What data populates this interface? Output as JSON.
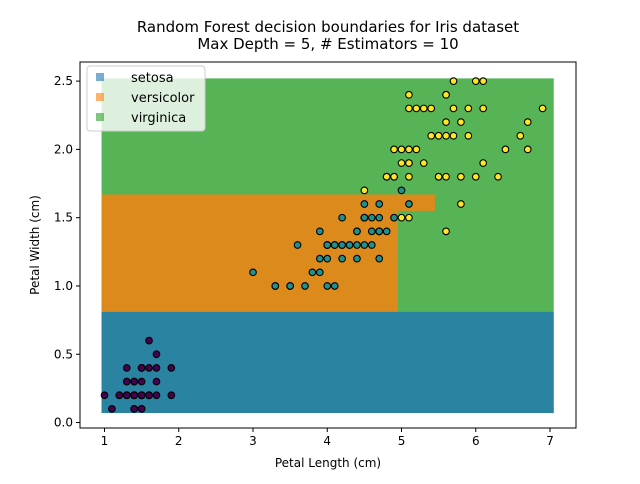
{
  "chart_data": {
    "type": "scatter",
    "title": "Random Forest decision boundaries for Iris dataset",
    "subtitle": "Max Depth = 5, # Estimators = 10",
    "xlabel": "Petal Length (cm)",
    "ylabel": "Petal Width (cm)",
    "xlim": [
      0.67,
      7.35
    ],
    "ylim": [
      -0.04,
      2.64
    ],
    "xticks": [
      1,
      2,
      3,
      4,
      5,
      6,
      7
    ],
    "xtick_labels": [
      "1",
      "2",
      "3",
      "4",
      "5",
      "6",
      "7"
    ],
    "yticks": [
      0.0,
      0.5,
      1.0,
      1.5,
      2.0,
      2.5
    ],
    "ytick_labels": [
      "0.0",
      "0.5",
      "1.0",
      "1.5",
      "2.0",
      "2.5"
    ],
    "grid": false,
    "legend_placement": "top-left",
    "legend": [
      {
        "label": "setosa",
        "color": "#1f77b4"
      },
      {
        "label": "versicolor",
        "color": "#ff7f0e"
      },
      {
        "label": "virginica",
        "color": "#2ca02c"
      }
    ],
    "regions": [
      {
        "class": "virginica",
        "color": "#2ca02c",
        "x": [
          0.96,
          7.05
        ],
        "y": [
          0.07,
          2.52
        ]
      },
      {
        "class": "versicolor",
        "color": "#ff7f0e",
        "x": [
          0.96,
          4.95
        ],
        "y": [
          0.81,
          1.67
        ]
      },
      {
        "class": "versicolor",
        "color": "#ff7f0e",
        "x": [
          4.95,
          5.45
        ],
        "y": [
          1.55,
          1.67
        ]
      },
      {
        "class": "setosa",
        "color": "#1f77b4",
        "x": [
          0.96,
          7.05
        ],
        "y": [
          0.07,
          0.81
        ]
      }
    ],
    "series": [
      {
        "class": "setosa",
        "color": "#440154",
        "points": [
          [
            1.4,
            0.2
          ],
          [
            1.4,
            0.2
          ],
          [
            1.3,
            0.2
          ],
          [
            1.5,
            0.2
          ],
          [
            1.4,
            0.2
          ],
          [
            1.7,
            0.4
          ],
          [
            1.4,
            0.3
          ],
          [
            1.5,
            0.2
          ],
          [
            1.4,
            0.2
          ],
          [
            1.5,
            0.1
          ],
          [
            1.5,
            0.2
          ],
          [
            1.6,
            0.2
          ],
          [
            1.4,
            0.1
          ],
          [
            1.1,
            0.1
          ],
          [
            1.2,
            0.2
          ],
          [
            1.5,
            0.4
          ],
          [
            1.3,
            0.4
          ],
          [
            1.4,
            0.3
          ],
          [
            1.7,
            0.3
          ],
          [
            1.5,
            0.3
          ],
          [
            1.7,
            0.2
          ],
          [
            1.5,
            0.4
          ],
          [
            1.0,
            0.2
          ],
          [
            1.7,
            0.5
          ],
          [
            1.9,
            0.2
          ],
          [
            1.6,
            0.2
          ],
          [
            1.6,
            0.4
          ],
          [
            1.5,
            0.2
          ],
          [
            1.4,
            0.2
          ],
          [
            1.6,
            0.2
          ],
          [
            1.6,
            0.2
          ],
          [
            1.5,
            0.4
          ],
          [
            1.5,
            0.1
          ],
          [
            1.4,
            0.2
          ],
          [
            1.5,
            0.2
          ],
          [
            1.2,
            0.2
          ],
          [
            1.3,
            0.2
          ],
          [
            1.4,
            0.1
          ],
          [
            1.3,
            0.2
          ],
          [
            1.5,
            0.2
          ],
          [
            1.3,
            0.3
          ],
          [
            1.3,
            0.3
          ],
          [
            1.3,
            0.2
          ],
          [
            1.6,
            0.6
          ],
          [
            1.9,
            0.4
          ],
          [
            1.4,
            0.3
          ],
          [
            1.6,
            0.2
          ],
          [
            1.4,
            0.2
          ],
          [
            1.5,
            0.2
          ],
          [
            1.4,
            0.2
          ]
        ]
      },
      {
        "class": "versicolor",
        "color": "#21918c",
        "points": [
          [
            4.7,
            1.4
          ],
          [
            4.5,
            1.5
          ],
          [
            4.9,
            1.5
          ],
          [
            4.0,
            1.3
          ],
          [
            4.6,
            1.5
          ],
          [
            4.5,
            1.3
          ],
          [
            4.7,
            1.6
          ],
          [
            3.3,
            1.0
          ],
          [
            4.6,
            1.3
          ],
          [
            3.9,
            1.4
          ],
          [
            3.5,
            1.0
          ],
          [
            4.2,
            1.5
          ],
          [
            4.0,
            1.0
          ],
          [
            4.7,
            1.4
          ],
          [
            3.6,
            1.3
          ],
          [
            4.4,
            1.4
          ],
          [
            4.5,
            1.5
          ],
          [
            4.1,
            1.0
          ],
          [
            4.5,
            1.5
          ],
          [
            3.9,
            1.1
          ],
          [
            4.8,
            1.8
          ],
          [
            4.0,
            1.3
          ],
          [
            4.9,
            1.5
          ],
          [
            4.7,
            1.2
          ],
          [
            4.3,
            1.3
          ],
          [
            4.4,
            1.4
          ],
          [
            4.8,
            1.4
          ],
          [
            5.0,
            1.7
          ],
          [
            4.5,
            1.5
          ],
          [
            3.5,
            1.0
          ],
          [
            3.8,
            1.1
          ],
          [
            3.7,
            1.0
          ],
          [
            3.9,
            1.2
          ],
          [
            5.1,
            1.6
          ],
          [
            4.5,
            1.5
          ],
          [
            4.5,
            1.6
          ],
          [
            4.7,
            1.5
          ],
          [
            4.4,
            1.3
          ],
          [
            4.1,
            1.3
          ],
          [
            4.0,
            1.3
          ],
          [
            4.4,
            1.2
          ],
          [
            4.6,
            1.4
          ],
          [
            4.0,
            1.2
          ],
          [
            3.3,
            1.0
          ],
          [
            4.2,
            1.3
          ],
          [
            4.2,
            1.2
          ],
          [
            4.2,
            1.3
          ],
          [
            4.3,
            1.3
          ],
          [
            3.0,
            1.1
          ],
          [
            4.1,
            1.3
          ]
        ]
      },
      {
        "class": "virginica",
        "color": "#fde725",
        "points": [
          [
            6.0,
            2.5
          ],
          [
            5.1,
            1.9
          ],
          [
            5.9,
            2.1
          ],
          [
            5.6,
            1.8
          ],
          [
            5.8,
            2.2
          ],
          [
            6.6,
            2.1
          ],
          [
            4.5,
            1.7
          ],
          [
            6.3,
            1.8
          ],
          [
            5.8,
            1.8
          ],
          [
            6.1,
            2.5
          ],
          [
            5.1,
            2.0
          ],
          [
            5.3,
            1.9
          ],
          [
            5.5,
            2.1
          ],
          [
            5.0,
            2.0
          ],
          [
            5.1,
            2.4
          ],
          [
            5.3,
            2.3
          ],
          [
            5.5,
            1.8
          ],
          [
            6.7,
            2.2
          ],
          [
            6.9,
            2.3
          ],
          [
            5.0,
            1.5
          ],
          [
            5.7,
            2.3
          ],
          [
            4.9,
            2.0
          ],
          [
            6.7,
            2.0
          ],
          [
            4.9,
            1.8
          ],
          [
            5.7,
            2.1
          ],
          [
            6.0,
            1.8
          ],
          [
            4.8,
            1.8
          ],
          [
            4.9,
            1.8
          ],
          [
            5.6,
            2.1
          ],
          [
            5.8,
            1.6
          ],
          [
            6.1,
            1.9
          ],
          [
            6.4,
            2.0
          ],
          [
            5.6,
            2.2
          ],
          [
            5.1,
            1.5
          ],
          [
            5.6,
            1.4
          ],
          [
            6.1,
            2.3
          ],
          [
            5.6,
            2.4
          ],
          [
            5.5,
            1.8
          ],
          [
            4.8,
            1.8
          ],
          [
            5.4,
            2.1
          ],
          [
            5.6,
            2.4
          ],
          [
            5.1,
            2.3
          ],
          [
            5.1,
            1.9
          ],
          [
            5.9,
            2.3
          ],
          [
            5.7,
            2.5
          ],
          [
            5.2,
            2.3
          ],
          [
            5.0,
            1.9
          ],
          [
            5.2,
            2.0
          ],
          [
            5.4,
            2.3
          ],
          [
            5.1,
            1.8
          ]
        ]
      }
    ]
  }
}
